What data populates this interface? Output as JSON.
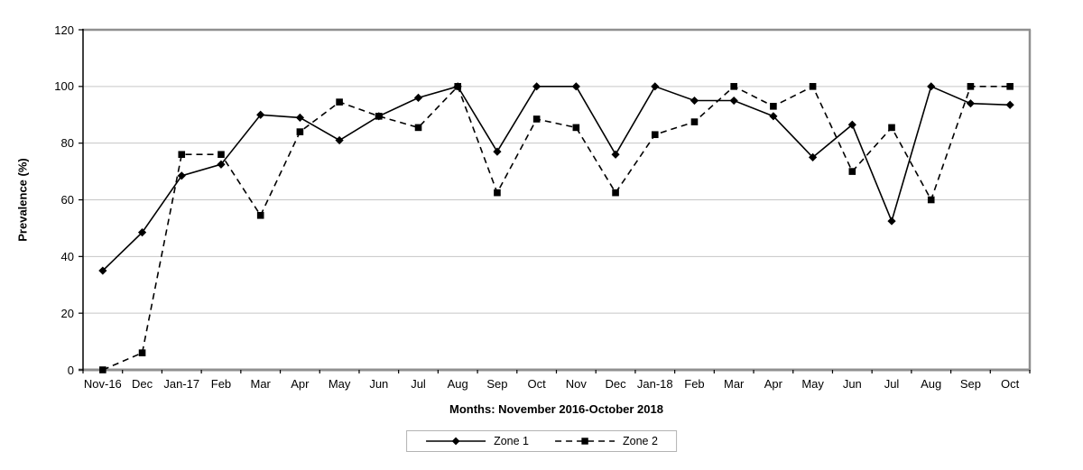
{
  "chart_data": {
    "type": "line",
    "title": "",
    "xlabel": "Months: November 2016-October 2018",
    "ylabel": "Prevalence (%)",
    "ylim": [
      0,
      120
    ],
    "yticks": [
      0,
      20,
      40,
      60,
      80,
      100,
      120
    ],
    "grid": true,
    "legend_position": "bottom",
    "categories": [
      "Nov-16",
      "Dec",
      "Jan-17",
      "Feb",
      "Mar",
      "Apr",
      "May",
      "Jun",
      "Jul",
      "Aug",
      "Sep",
      "Oct",
      "Nov",
      "Dec",
      "Jan-18",
      "Feb",
      "Mar",
      "Apr",
      "May",
      "Jun",
      "Jul",
      "Aug",
      "Sep",
      "Oct"
    ],
    "series": [
      {
        "name": "Zone 1",
        "marker": "diamond",
        "line": "solid",
        "values": [
          35,
          48.5,
          68.5,
          72.5,
          90,
          89,
          81,
          89.5,
          96,
          100,
          77,
          100,
          100,
          76,
          100,
          95,
          95,
          89.5,
          75,
          86.5,
          52.5,
          100,
          94,
          93.5
        ]
      },
      {
        "name": "Zone 2",
        "marker": "square",
        "line": "dashed",
        "values": [
          0,
          6,
          76,
          76,
          54.5,
          84,
          94.5,
          89.5,
          85.5,
          100,
          62.5,
          88.5,
          85.5,
          62.5,
          83,
          87.5,
          100,
          93,
          100,
          70,
          85.5,
          60,
          100,
          100
        ]
      }
    ],
    "colors": {
      "series": "#000000",
      "gridline": "#c6c6c6",
      "plot_border": "#909090",
      "text": "#000000",
      "background": "#ffffff",
      "legend_border": "#b3b3b3"
    }
  }
}
